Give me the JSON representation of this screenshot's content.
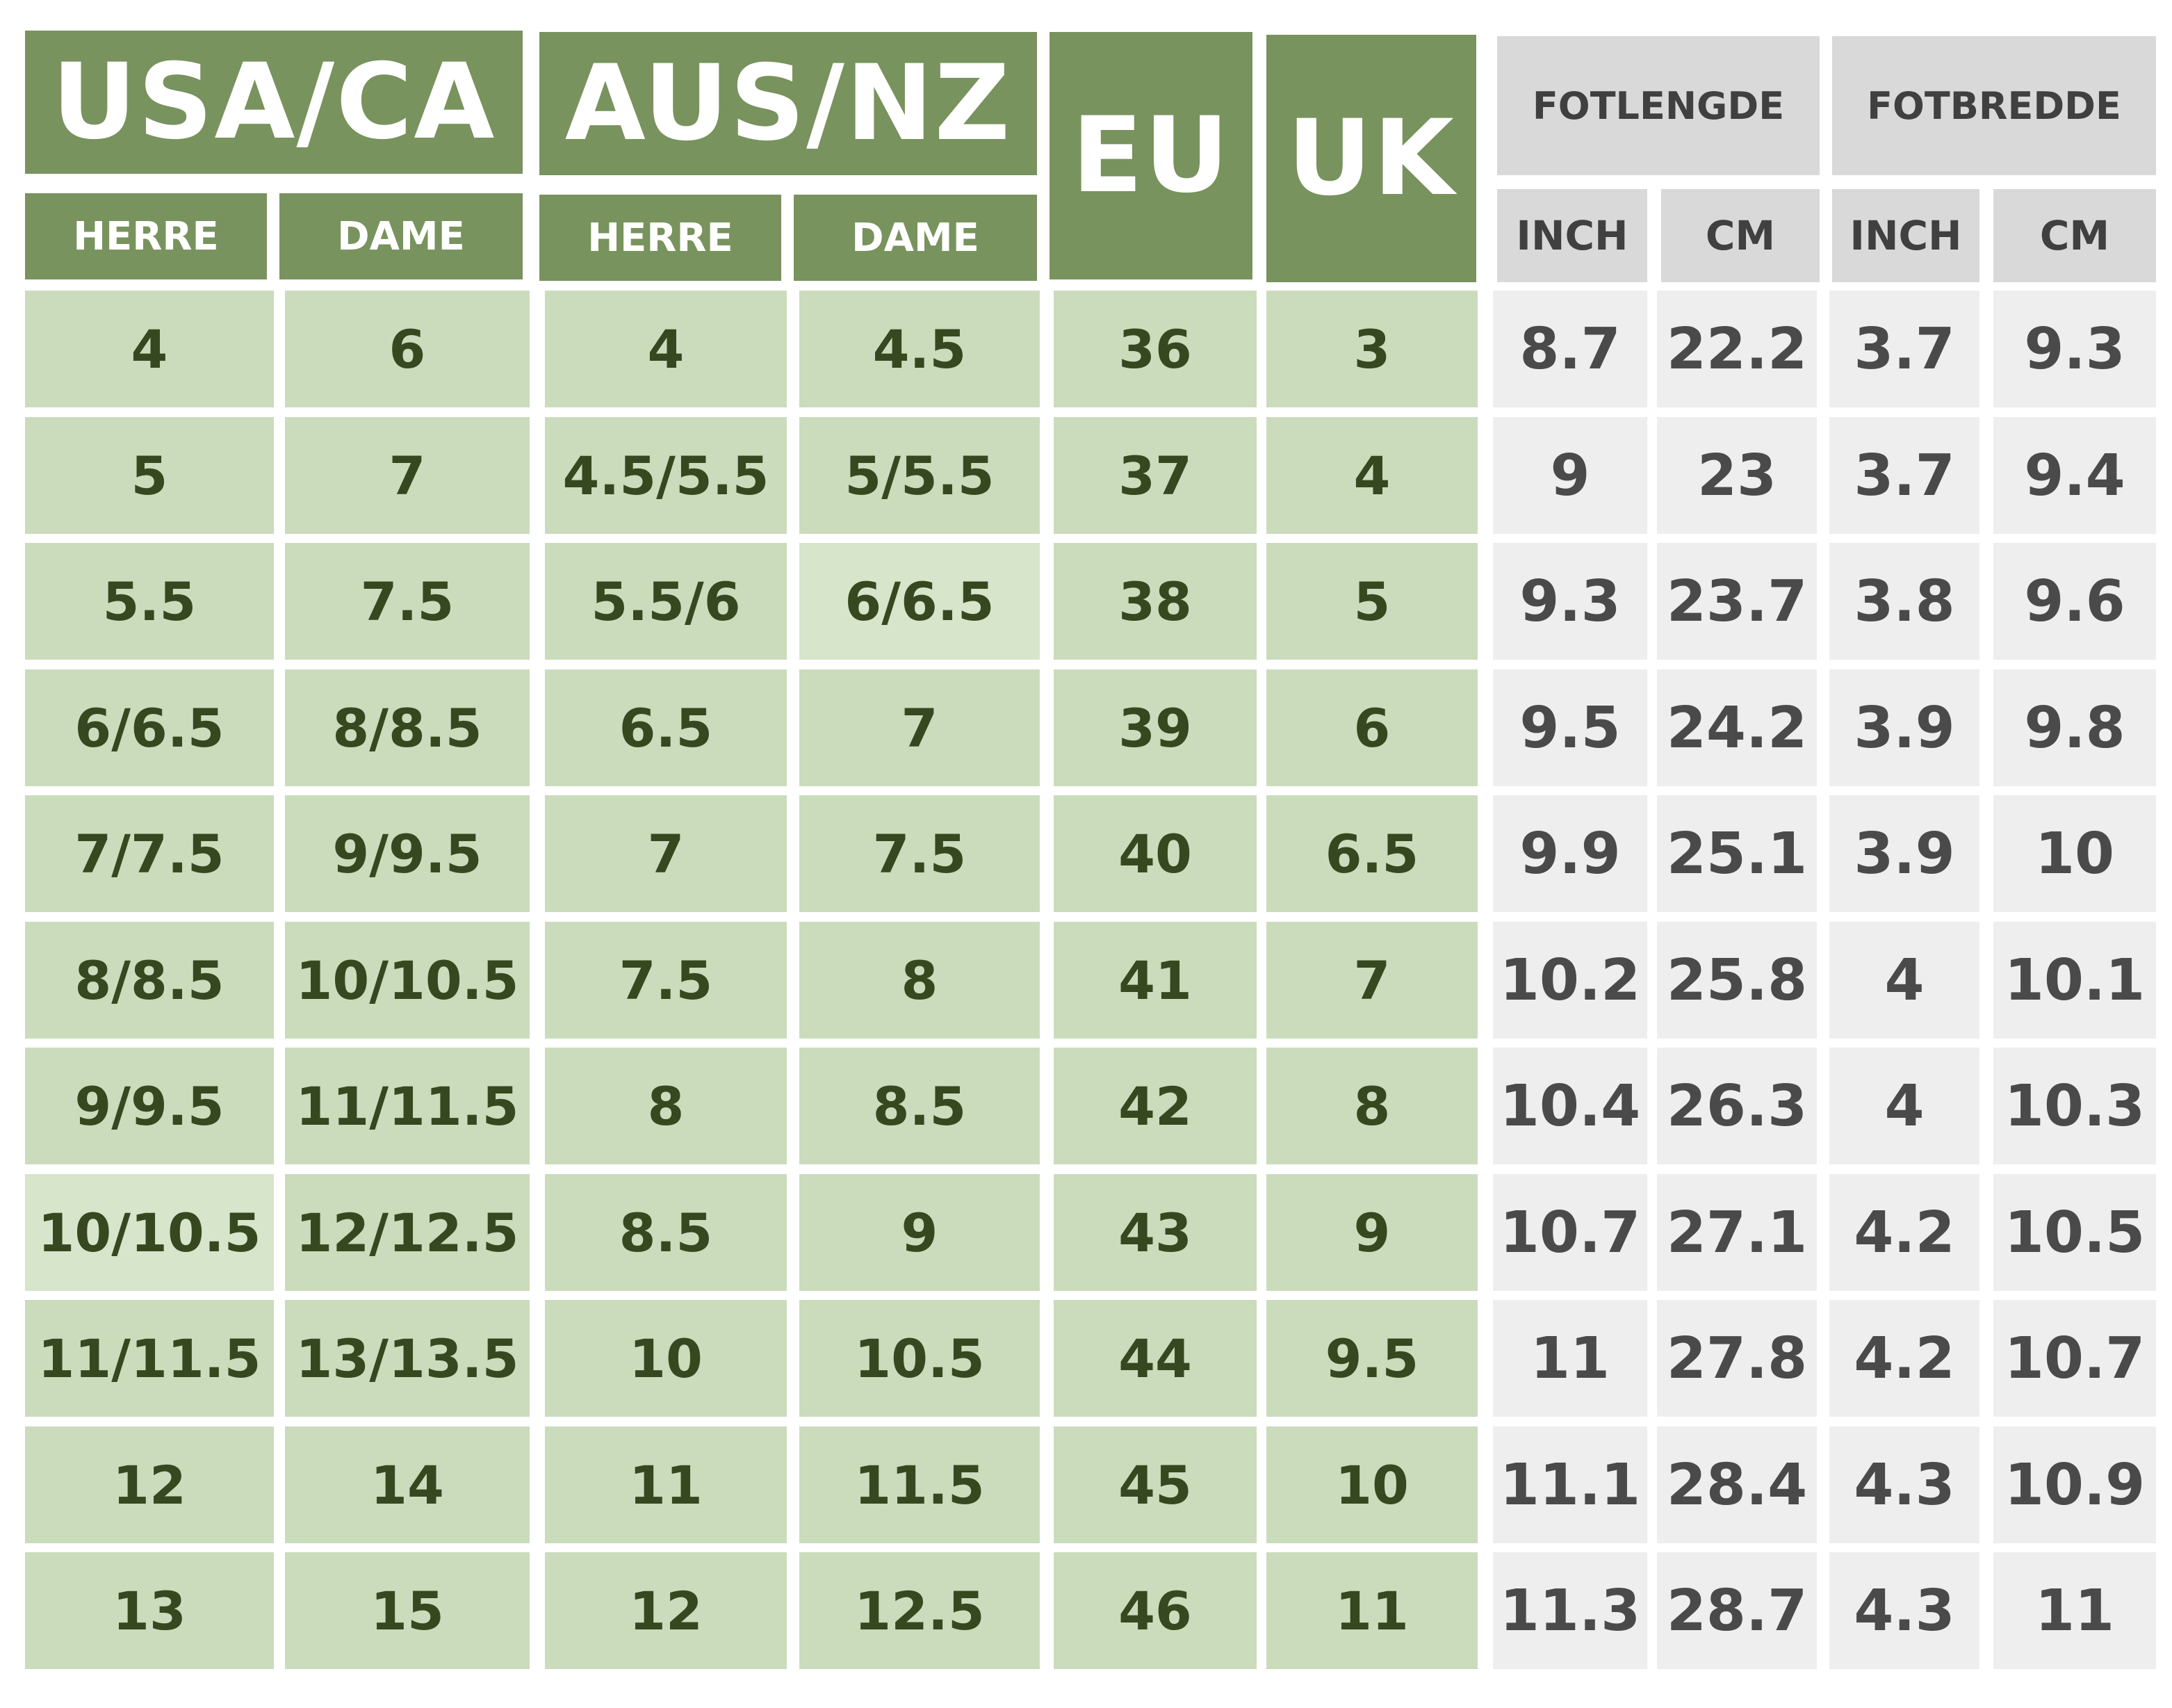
{
  "groups": {
    "usa_ca": "USA/CA",
    "aus_nz": "AUS/NZ",
    "eu": "EU",
    "uk": "UK",
    "fotlengde": "FOTLENGDE",
    "fotbredde": "FOTBREDDE"
  },
  "subheaders": {
    "usa_herre": "HERRE",
    "usa_dame": "DAME",
    "aus_herre": "HERRE",
    "aus_dame": "DAME",
    "len_inch": "INCH",
    "len_cm": "CM",
    "wid_inch": "INCH",
    "wid_cm": "CM"
  },
  "rows": [
    [
      "4",
      "6",
      "4",
      "4.5",
      "36",
      "3",
      "8.7",
      "22.2",
      "3.7",
      "9.3"
    ],
    [
      "5",
      "7",
      "4.5/5.5",
      "5/5.5",
      "37",
      "4",
      "9",
      "23",
      "3.7",
      "9.4"
    ],
    [
      "5.5",
      "7.5",
      "5.5/6",
      "6/6.5",
      "38",
      "5",
      "9.3",
      "23.7",
      "3.8",
      "9.6"
    ],
    [
      "6/6.5",
      "8/8.5",
      "6.5",
      "7",
      "39",
      "6",
      "9.5",
      "24.2",
      "3.9",
      "9.8"
    ],
    [
      "7/7.5",
      "9/9.5",
      "7",
      "7.5",
      "40",
      "6.5",
      "9.9",
      "25.1",
      "3.9",
      "10"
    ],
    [
      "8/8.5",
      "10/10.5",
      "7.5",
      "8",
      "41",
      "7",
      "10.2",
      "25.8",
      "4",
      "10.1"
    ],
    [
      "9/9.5",
      "11/11.5",
      "8",
      "8.5",
      "42",
      "8",
      "10.4",
      "26.3",
      "4",
      "10.3"
    ],
    [
      "10/10.5",
      "12/12.5",
      "8.5",
      "9",
      "43",
      "9",
      "10.7",
      "27.1",
      "4.2",
      "10.5"
    ],
    [
      "11/11.5",
      "13/13.5",
      "10",
      "10.5",
      "44",
      "9.5",
      "11",
      "27.8",
      "4.2",
      "10.7"
    ],
    [
      "12",
      "14",
      "11",
      "11.5",
      "45",
      "10",
      "11.1",
      "28.4",
      "4.3",
      "10.9"
    ],
    [
      "13",
      "15",
      "12",
      "12.5",
      "46",
      "11",
      "11.3",
      "28.7",
      "4.3",
      "11"
    ]
  ],
  "colors": {
    "green_header": "#78935d",
    "green_cell": "#cadcbc",
    "green_text": "#36481f",
    "gray_header": "#d9d9d9",
    "gray_cell": "#eeeeee",
    "gray_text": "#4a4a4a"
  }
}
